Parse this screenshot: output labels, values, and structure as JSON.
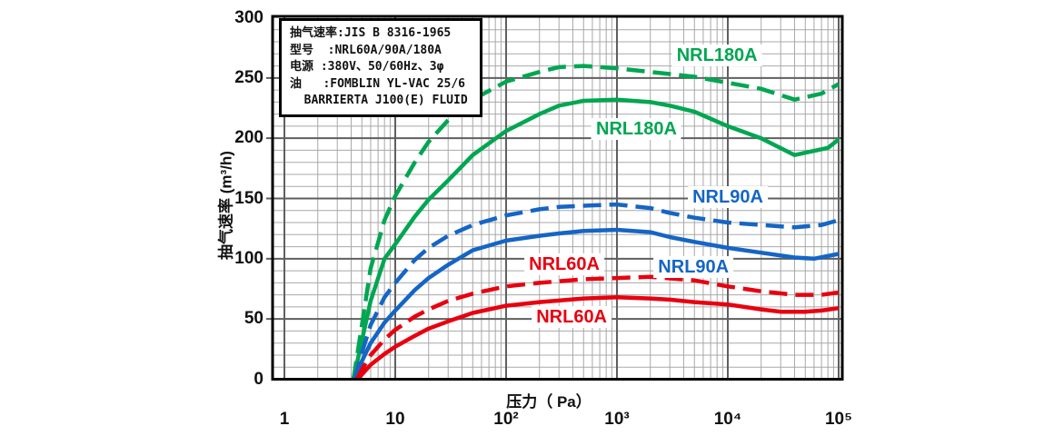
{
  "chart_data": {
    "type": "line",
    "x_scale": "log",
    "xlabel": "压力（ Pa）",
    "ylabel": "抽气速率 (m³/h)",
    "x_range": [
      0.78,
      107000
    ],
    "y_range": [
      0,
      300
    ],
    "x_ticks": [
      {
        "label": "1",
        "value": 1
      },
      {
        "label": "10",
        "value": 10
      },
      {
        "label": "10²",
        "value": 100
      },
      {
        "label": "10³",
        "value": 1000
      },
      {
        "label": "10⁴",
        "value": 10000
      },
      {
        "label": "10⁵",
        "value": 100000
      }
    ],
    "y_ticks": [
      0,
      50,
      100,
      150,
      200,
      250,
      300
    ],
    "grid": {
      "y_minor_step": 10,
      "x_minor": "log decades m=2..9",
      "major_color": "#5f5f5f",
      "minor_color": "#a8a8a8",
      "frame_color": "#000000"
    },
    "info_box": {
      "lines": [
        "抽气速率:JIS B 8316-1965",
        "型号  :NRL60A/90A/180A",
        "电源 :380V、50/60Hz、3φ",
        "油   :FOMBLIN YL-VAC 25/6",
        "  BARRIERTA J100(E) FLUID"
      ]
    },
    "colors": {
      "nrl180a": "#00a651",
      "nrl90a": "#1565c5",
      "nrl60a": "#e8000f"
    },
    "series": [
      {
        "name": "NRL180A dashed",
        "model": "NRL180A",
        "line": "dashed",
        "color": "#00a651",
        "points": [
          [
            4.2,
            0
          ],
          [
            5,
            45
          ],
          [
            6,
            92
          ],
          [
            8,
            132
          ],
          [
            10,
            152
          ],
          [
            15,
            180
          ],
          [
            20,
            197
          ],
          [
            30,
            215
          ],
          [
            50,
            232
          ],
          [
            100,
            247
          ],
          [
            200,
            255
          ],
          [
            300,
            259
          ],
          [
            500,
            260
          ],
          [
            1000,
            258
          ],
          [
            2000,
            255
          ],
          [
            5000,
            251
          ],
          [
            10000,
            246
          ],
          [
            20000,
            241
          ],
          [
            40000,
            232
          ],
          [
            70000,
            237
          ],
          [
            100000,
            245
          ]
        ]
      },
      {
        "name": "NRL180A solid",
        "model": "NRL180A",
        "line": "solid",
        "color": "#00a651",
        "points": [
          [
            4.2,
            0
          ],
          [
            5,
            32
          ],
          [
            6,
            65
          ],
          [
            8,
            100
          ],
          [
            10,
            112
          ],
          [
            15,
            135
          ],
          [
            20,
            149
          ],
          [
            30,
            165
          ],
          [
            50,
            186
          ],
          [
            100,
            206
          ],
          [
            200,
            220
          ],
          [
            300,
            227
          ],
          [
            500,
            231
          ],
          [
            1000,
            232
          ],
          [
            2000,
            230
          ],
          [
            3000,
            227
          ],
          [
            5000,
            222
          ],
          [
            10000,
            210
          ],
          [
            20000,
            200
          ],
          [
            40000,
            186
          ],
          [
            80000,
            192
          ],
          [
            100000,
            199
          ]
        ]
      },
      {
        "name": "NRL90A dashed",
        "model": "NRL90A",
        "line": "dashed",
        "color": "#1565c5",
        "points": [
          [
            4.3,
            0
          ],
          [
            5,
            22
          ],
          [
            6,
            45
          ],
          [
            8,
            68
          ],
          [
            10,
            80
          ],
          [
            15,
            99
          ],
          [
            20,
            109
          ],
          [
            30,
            119
          ],
          [
            50,
            128
          ],
          [
            100,
            136
          ],
          [
            200,
            141
          ],
          [
            300,
            143
          ],
          [
            500,
            144
          ],
          [
            1000,
            145
          ],
          [
            2000,
            142
          ],
          [
            3000,
            138
          ],
          [
            5000,
            134
          ],
          [
            10000,
            130
          ],
          [
            20000,
            128
          ],
          [
            40000,
            126
          ],
          [
            70000,
            128
          ],
          [
            100000,
            132
          ]
        ]
      },
      {
        "name": "NRL90A solid",
        "model": "NRL90A",
        "line": "solid",
        "color": "#1565c5",
        "points": [
          [
            4.3,
            0
          ],
          [
            5,
            15
          ],
          [
            6,
            30
          ],
          [
            8,
            47
          ],
          [
            10,
            57
          ],
          [
            15,
            74
          ],
          [
            20,
            84
          ],
          [
            30,
            95
          ],
          [
            50,
            107
          ],
          [
            100,
            115
          ],
          [
            200,
            119
          ],
          [
            300,
            121
          ],
          [
            500,
            123
          ],
          [
            1000,
            124
          ],
          [
            2000,
            122
          ],
          [
            3000,
            118
          ],
          [
            5000,
            114
          ],
          [
            10000,
            109
          ],
          [
            20000,
            105
          ],
          [
            40000,
            101
          ],
          [
            60000,
            100
          ],
          [
            100000,
            104
          ]
        ]
      },
      {
        "name": "NRL60A dashed",
        "model": "NRL60A",
        "line": "dashed",
        "color": "#e8000f",
        "points": [
          [
            4.5,
            0
          ],
          [
            5,
            8
          ],
          [
            6,
            20
          ],
          [
            8,
            33
          ],
          [
            10,
            41
          ],
          [
            15,
            52
          ],
          [
            20,
            58
          ],
          [
            30,
            65
          ],
          [
            50,
            71
          ],
          [
            100,
            77
          ],
          [
            200,
            80
          ],
          [
            500,
            83
          ],
          [
            1000,
            84
          ],
          [
            2000,
            85
          ],
          [
            5000,
            82
          ],
          [
            10000,
            77
          ],
          [
            20000,
            73
          ],
          [
            40000,
            70
          ],
          [
            70000,
            70
          ],
          [
            100000,
            72
          ]
        ]
      },
      {
        "name": "NRL60A solid",
        "model": "NRL60A",
        "line": "solid",
        "color": "#e8000f",
        "points": [
          [
            4.6,
            0
          ],
          [
            5,
            4
          ],
          [
            6,
            12
          ],
          [
            8,
            21
          ],
          [
            10,
            27
          ],
          [
            15,
            36
          ],
          [
            20,
            42
          ],
          [
            30,
            48
          ],
          [
            50,
            55
          ],
          [
            100,
            61
          ],
          [
            200,
            64
          ],
          [
            500,
            67
          ],
          [
            1000,
            68
          ],
          [
            2000,
            67
          ],
          [
            3000,
            66
          ],
          [
            5000,
            64
          ],
          [
            10000,
            62
          ],
          [
            20000,
            58
          ],
          [
            30000,
            56
          ],
          [
            50000,
            56
          ],
          [
            70000,
            57
          ],
          [
            100000,
            59
          ]
        ]
      }
    ],
    "curve_labels": [
      {
        "text": "NRL180A",
        "color": "#00a651",
        "pa": 8000,
        "value": 269
      },
      {
        "text": "NRL180A",
        "color": "#00a651",
        "pa": 1500,
        "value": 208
      },
      {
        "text": "NRL90A",
        "color": "#1565c5",
        "pa": 10000,
        "value": 151
      },
      {
        "text": "NRL90A",
        "color": "#1565c5",
        "pa": 4900,
        "value": 93
      },
      {
        "text": "NRL60A",
        "color": "#e8000f",
        "pa": 335,
        "value": 95
      },
      {
        "text": "NRL60A",
        "color": "#e8000f",
        "pa": 390,
        "value": 52
      }
    ]
  }
}
